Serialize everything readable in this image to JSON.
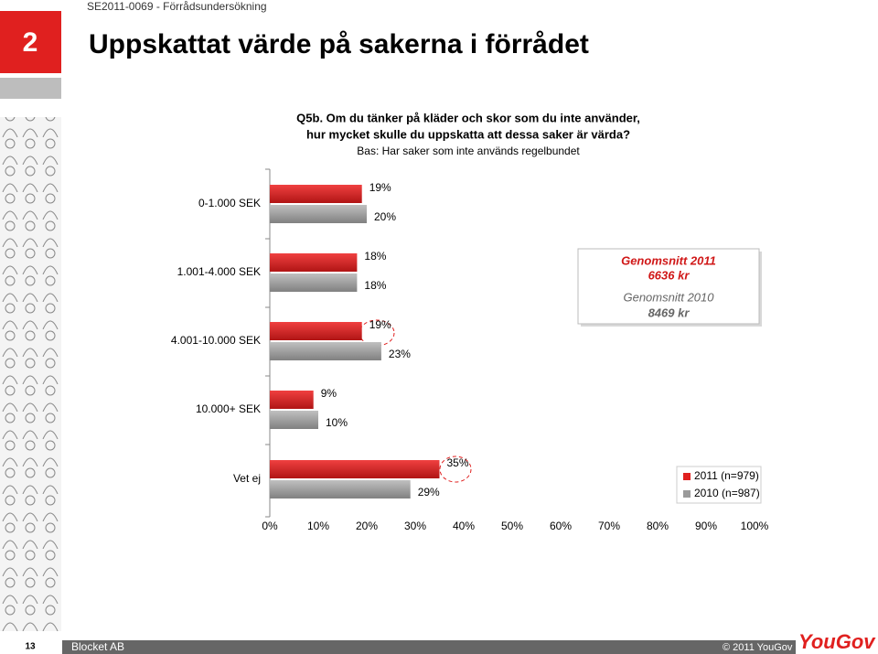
{
  "header": {
    "project": "SE2011-0069 - Förrådsundersökning",
    "section_number": "2",
    "title": "Uppskattat värde på sakerna i förrådet"
  },
  "chart_data": {
    "type": "bar",
    "orientation": "horizontal",
    "question": [
      "Q5b. Om du tänker på kläder och skor som du inte använder,",
      "hur mycket skulle du uppskatta att dessa saker är värda?"
    ],
    "subtitle": "Bas: Har saker som inte används regelbundet",
    "categories": [
      "0-1.000 SEK",
      "1.001-4.000 SEK",
      "4.001-10.000 SEK",
      "10.000+ SEK",
      "Vet ej"
    ],
    "series": [
      {
        "name": "2011 (n=979)",
        "color": "#e0201f",
        "values": [
          19,
          18,
          19,
          9,
          35
        ],
        "value_labels": [
          "19%",
          "18%",
          "19%",
          "9%",
          "35%"
        ]
      },
      {
        "name": "2010 (n=987)",
        "color": "#9a9a9a",
        "values": [
          20,
          18,
          23,
          10,
          29
        ],
        "value_labels": [
          "20%",
          "18%",
          "23%",
          "10%",
          "29%"
        ]
      }
    ],
    "xlim": [
      0,
      100
    ],
    "xticks": [
      {
        "value": 0,
        "label": "0%"
      },
      {
        "value": 10,
        "label": "10%"
      },
      {
        "value": 20,
        "label": "20%"
      },
      {
        "value": 30,
        "label": "30%"
      },
      {
        "value": 40,
        "label": "40%"
      },
      {
        "value": 50,
        "label": "50%"
      },
      {
        "value": 60,
        "label": "60%"
      },
      {
        "value": 70,
        "label": "70%"
      },
      {
        "value": 80,
        "label": "80%"
      },
      {
        "value": 90,
        "label": "90%"
      },
      {
        "value": 100,
        "label": "100%"
      }
    ],
    "annotation": [
      "Genomsnitt 2011",
      "6636 kr",
      "Genomsnitt 2010",
      "8469 kr"
    ]
  },
  "footer": {
    "page": "13",
    "company": "Blocket AB",
    "copyright": "© 2011 YouGov",
    "logo": "YouGov"
  }
}
